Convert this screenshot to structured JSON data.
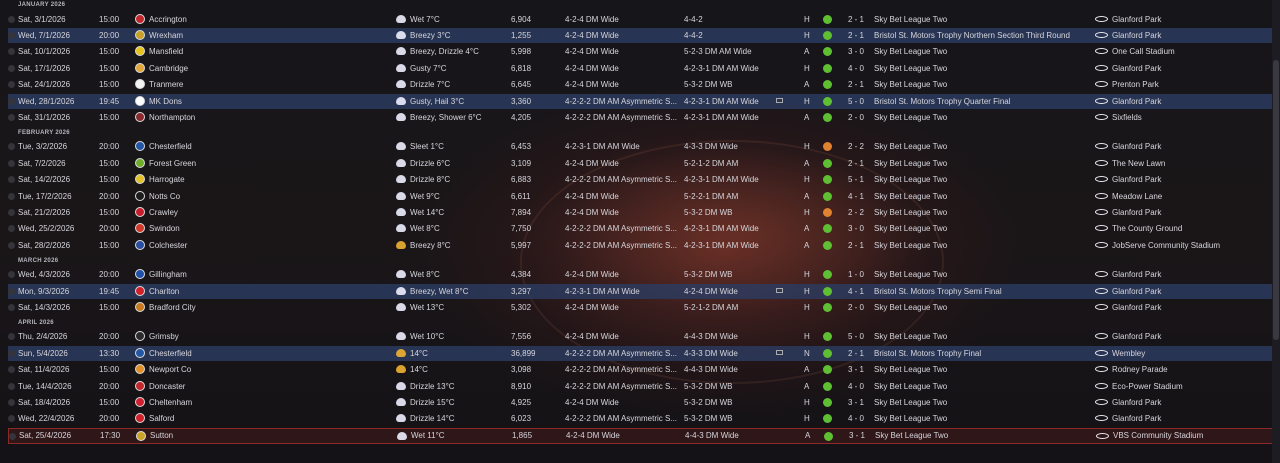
{
  "months": [
    {
      "label": "JANUARY 2026",
      "matches": [
        {
          "date": "Sat, 3/1/2026",
          "time": "15:00",
          "opponent": "Accrington",
          "crest": "#c0282b",
          "weather": "Wet 7°C",
          "wicon": "cloud-rain-icon",
          "attendance": "6,904",
          "formation": "4-2-4 DM Wide",
          "opp_formation": "4-4-2",
          "tv": false,
          "venue": "H",
          "result": "green",
          "score": "2 - 1",
          "competition": "Sky Bet League Two",
          "stadium": "Glanford Park",
          "highlight": false
        },
        {
          "date": "Wed, 7/1/2026",
          "time": "20:00",
          "opponent": "Wrexham",
          "crest": "#c8a02a",
          "weather": "Breezy 3°C",
          "wicon": "wind-cloud-icon",
          "attendance": "1,255",
          "formation": "4-2-4 DM Wide",
          "opp_formation": "4-4-2",
          "tv": false,
          "venue": "H",
          "result": "green",
          "score": "2 - 1",
          "competition": "Bristol St. Motors Trophy Northern Section Third Round",
          "stadium": "Glanford Park",
          "highlight": true
        },
        {
          "date": "Sat, 10/1/2026",
          "time": "15:00",
          "opponent": "Mansfield",
          "crest": "#e6c21d",
          "weather": "Breezy, Drizzle 4°C",
          "wicon": "cloud-drizzle-icon",
          "attendance": "5,998",
          "formation": "4-2-4 DM Wide",
          "opp_formation": "5-2-3 DM AM Wide",
          "tv": false,
          "venue": "A",
          "result": "green",
          "score": "3 - 0",
          "competition": "Sky Bet League Two",
          "stadium": "One Call Stadium",
          "highlight": false
        },
        {
          "date": "Sat, 17/1/2026",
          "time": "15:00",
          "opponent": "Cambridge",
          "crest": "#e0a83a",
          "weather": "Gusty 7°C",
          "wicon": "wind-cloud-icon",
          "attendance": "6,818",
          "formation": "4-2-4 DM Wide",
          "opp_formation": "4-2-3-1 DM AM Wide",
          "tv": false,
          "venue": "H",
          "result": "green",
          "score": "4 - 0",
          "competition": "Sky Bet League Two",
          "stadium": "Glanford Park",
          "highlight": false
        },
        {
          "date": "Sat, 24/1/2026",
          "time": "15:00",
          "opponent": "Tranmere",
          "crest": "#f2f2f2",
          "weather": "Drizzle 7°C",
          "wicon": "cloud-drizzle-icon",
          "attendance": "6,645",
          "formation": "4-2-4 DM Wide",
          "opp_formation": "5-3-2 DM WB",
          "tv": false,
          "venue": "A",
          "result": "green",
          "score": "2 - 1",
          "competition": "Sky Bet League Two",
          "stadium": "Prenton Park",
          "highlight": false
        },
        {
          "date": "Wed, 28/1/2026",
          "time": "19:45",
          "opponent": "MK Dons",
          "crest": "#ffffff",
          "weather": "Gusty, Hail 3°C",
          "wicon": "cloud-hail-icon",
          "attendance": "3,360",
          "formation": "4-2-2-2 DM AM Asymmetric S...",
          "opp_formation": "4-2-3-1 DM AM Wide",
          "tv": true,
          "venue": "H",
          "result": "green",
          "score": "5 - 0",
          "competition": "Bristol St. Motors Trophy Quarter Final",
          "stadium": "Glanford Park",
          "highlight": true
        },
        {
          "date": "Sat, 31/1/2026",
          "time": "15:00",
          "opponent": "Northampton",
          "crest": "#8a2a2e",
          "weather": "Breezy, Shower 6°C",
          "wicon": "cloud-rain-icon",
          "attendance": "4,205",
          "formation": "4-2-2-2 DM AM Asymmetric S...",
          "opp_formation": "4-2-3-1 DM AM Wide",
          "tv": false,
          "venue": "A",
          "result": "green",
          "score": "2 - 0",
          "competition": "Sky Bet League Two",
          "stadium": "Sixfields",
          "highlight": false
        }
      ]
    },
    {
      "label": "FEBRUARY 2026",
      "matches": [
        {
          "date": "Tue, 3/2/2026",
          "time": "20:00",
          "opponent": "Chesterfield",
          "crest": "#2456a6",
          "weather": "Sleet 1°C",
          "wicon": "cloud-sleet-icon",
          "attendance": "6,453",
          "formation": "4-2-3-1 DM AM Wide",
          "opp_formation": "4-3-3 DM Wide",
          "tv": false,
          "venue": "H",
          "result": "orange",
          "score": "2 - 2",
          "competition": "Sky Bet League Two",
          "stadium": "Glanford Park",
          "highlight": false
        },
        {
          "date": "Sat, 7/2/2026",
          "time": "15:00",
          "opponent": "Forest Green",
          "crest": "#6fae2b",
          "weather": "Drizzle 6°C",
          "wicon": "cloud-drizzle-icon",
          "attendance": "3,109",
          "formation": "4-2-4 DM Wide",
          "opp_formation": "5-2-1-2 DM AM",
          "tv": false,
          "venue": "A",
          "result": "green",
          "score": "2 - 1",
          "competition": "Sky Bet League Two",
          "stadium": "The New Lawn",
          "highlight": false
        },
        {
          "date": "Sat, 14/2/2026",
          "time": "15:00",
          "opponent": "Harrogate",
          "crest": "#e3c12b",
          "weather": "Drizzle 8°C",
          "wicon": "cloud-drizzle-icon",
          "attendance": "6,883",
          "formation": "4-2-2-2 DM AM Asymmetric S...",
          "opp_formation": "4-2-3-1 DM AM Wide",
          "tv": false,
          "venue": "H",
          "result": "green",
          "score": "5 - 1",
          "competition": "Sky Bet League Two",
          "stadium": "Glanford Park",
          "highlight": false
        },
        {
          "date": "Tue, 17/2/2026",
          "time": "20:00",
          "opponent": "Notts Co",
          "crest": "#1c1c1c",
          "weather": "Wet 9°C",
          "wicon": "cloud-rain-icon",
          "attendance": "6,611",
          "formation": "4-2-4 DM Wide",
          "opp_formation": "5-2-2-1 DM AM",
          "tv": false,
          "venue": "A",
          "result": "green",
          "score": "4 - 1",
          "competition": "Sky Bet League Two",
          "stadium": "Meadow Lane",
          "highlight": false
        },
        {
          "date": "Sat, 21/2/2026",
          "time": "15:00",
          "opponent": "Crawley",
          "crest": "#c41e2a",
          "weather": "Wet 14°C",
          "wicon": "cloud-rain-icon",
          "attendance": "7,894",
          "formation": "4-2-4 DM Wide",
          "opp_formation": "5-3-2 DM WB",
          "tv": false,
          "venue": "H",
          "result": "orange",
          "score": "2 - 2",
          "competition": "Sky Bet League Two",
          "stadium": "Glanford Park",
          "highlight": false
        },
        {
          "date": "Wed, 25/2/2026",
          "time": "20:00",
          "opponent": "Swindon",
          "crest": "#d03a2a",
          "weather": "Wet 8°C",
          "wicon": "cloud-rain-icon",
          "attendance": "7,750",
          "formation": "4-2-2-2 DM AM Asymmetric S...",
          "opp_formation": "4-2-3-1 DM AM Wide",
          "tv": false,
          "venue": "A",
          "result": "green",
          "score": "3 - 0",
          "competition": "Sky Bet League Two",
          "stadium": "The County Ground",
          "highlight": false
        },
        {
          "date": "Sat, 28/2/2026",
          "time": "15:00",
          "opponent": "Colchester",
          "crest": "#2a4fa0",
          "weather": "Breezy 8°C",
          "wicon": "sun-cloud-icon",
          "attendance": "5,997",
          "formation": "4-2-2-2 DM AM Asymmetric S...",
          "opp_formation": "4-2-3-1 DM AM Wide",
          "tv": false,
          "venue": "A",
          "result": "green",
          "score": "2 - 1",
          "competition": "Sky Bet League Two",
          "stadium": "JobServe Community Stadium",
          "highlight": false
        }
      ]
    },
    {
      "label": "MARCH 2026",
      "matches": [
        {
          "date": "Wed, 4/3/2026",
          "time": "20:00",
          "opponent": "Gillingham",
          "crest": "#2050a8",
          "weather": "Wet 8°C",
          "wicon": "cloud-rain-icon",
          "attendance": "4,384",
          "formation": "4-2-4 DM Wide",
          "opp_formation": "5-3-2 DM WB",
          "tv": false,
          "venue": "H",
          "result": "green",
          "score": "1 - 0",
          "competition": "Sky Bet League Two",
          "stadium": "Glanford Park",
          "highlight": false
        },
        {
          "date": "Mon, 9/3/2026",
          "time": "19:45",
          "opponent": "Charlton",
          "crest": "#d0202a",
          "weather": "Breezy, Wet 8°C",
          "wicon": "cloud-rain-icon",
          "attendance": "3,297",
          "formation": "4-2-3-1 DM AM Wide",
          "opp_formation": "4-2-4 DM Wide",
          "tv": true,
          "venue": "H",
          "result": "green",
          "score": "4 - 1",
          "competition": "Bristol St. Motors Trophy Semi Final",
          "stadium": "Glanford Park",
          "highlight": true
        },
        {
          "date": "Sat, 14/3/2026",
          "time": "15:00",
          "opponent": "Bradford City",
          "crest": "#c77a1e",
          "weather": "Wet 13°C",
          "wicon": "cloud-rain-icon",
          "attendance": "5,302",
          "formation": "4-2-4 DM Wide",
          "opp_formation": "5-2-1-2 DM AM",
          "tv": false,
          "venue": "H",
          "result": "green",
          "score": "2 - 0",
          "competition": "Sky Bet League Two",
          "stadium": "Glanford Park",
          "highlight": false
        }
      ]
    },
    {
      "label": "APRIL 2026",
      "matches": [
        {
          "date": "Thu, 2/4/2026",
          "time": "20:00",
          "opponent": "Grimsby",
          "crest": "#2b2b2b",
          "weather": "Wet 10°C",
          "wicon": "cloud-rain-icon",
          "attendance": "7,556",
          "formation": "4-2-4 DM Wide",
          "opp_formation": "4-4-3 DM Wide",
          "tv": false,
          "venue": "H",
          "result": "green",
          "score": "5 - 0",
          "competition": "Sky Bet League Two",
          "stadium": "Glanford Park",
          "highlight": false
        },
        {
          "date": "Sun, 5/4/2026",
          "time": "13:30",
          "opponent": "Chesterfield",
          "crest": "#2456a6",
          "weather": "14°C",
          "wicon": "sun-cloud-icon",
          "attendance": "36,899",
          "formation": "4-2-2-2 DM AM Asymmetric S...",
          "opp_formation": "4-3-3 DM Wide",
          "tv": true,
          "venue": "N",
          "result": "green",
          "score": "2 - 1",
          "competition": "Bristol St. Motors Trophy Final",
          "stadium": "Wembley",
          "highlight": true
        },
        {
          "date": "Sat, 11/4/2026",
          "time": "15:00",
          "opponent": "Newport Co",
          "crest": "#e0902a",
          "weather": "14°C",
          "wicon": "sun-cloud-icon",
          "attendance": "3,098",
          "formation": "4-2-2-2 DM AM Asymmetric S...",
          "opp_formation": "4-4-3 DM Wide",
          "tv": false,
          "venue": "A",
          "result": "green",
          "score": "3 - 1",
          "competition": "Sky Bet League Two",
          "stadium": "Rodney Parade",
          "highlight": false
        },
        {
          "date": "Tue, 14/4/2026",
          "time": "20:00",
          "opponent": "Doncaster",
          "crest": "#c0282b",
          "weather": "Drizzle 13°C",
          "wicon": "cloud-drizzle-icon",
          "attendance": "8,910",
          "formation": "4-2-2-2 DM AM Asymmetric S...",
          "opp_formation": "5-3-2 DM WB",
          "tv": false,
          "venue": "A",
          "result": "green",
          "score": "4 - 0",
          "competition": "Sky Bet League Two",
          "stadium": "Eco-Power Stadium",
          "highlight": false
        },
        {
          "date": "Sat, 18/4/2026",
          "time": "15:00",
          "opponent": "Cheltenham",
          "crest": "#d02030",
          "weather": "Drizzle 15°C",
          "wicon": "cloud-drizzle-icon",
          "attendance": "4,925",
          "formation": "4-2-4 DM Wide",
          "opp_formation": "5-3-2 DM WB",
          "tv": false,
          "venue": "H",
          "result": "green",
          "score": "3 - 1",
          "competition": "Sky Bet League Two",
          "stadium": "Glanford Park",
          "highlight": false
        },
        {
          "date": "Wed, 22/4/2026",
          "time": "20:00",
          "opponent": "Salford",
          "crest": "#d0202a",
          "weather": "Drizzle 14°C",
          "wicon": "cloud-drizzle-icon",
          "attendance": "6,023",
          "formation": "4-2-2-2 DM AM Asymmetric S...",
          "opp_formation": "5-3-2 DM WB",
          "tv": false,
          "venue": "H",
          "result": "green",
          "score": "4 - 0",
          "competition": "Sky Bet League Two",
          "stadium": "Glanford Park",
          "highlight": false
        },
        {
          "date": "Sat, 25/4/2026",
          "time": "17:30",
          "opponent": "Sutton",
          "crest": "#c9a22a",
          "weather": "Wet 11°C",
          "wicon": "cloud-rain-icon",
          "attendance": "1,865",
          "formation": "4-2-4 DM Wide",
          "opp_formation": "4-4-3 DM Wide",
          "tv": false,
          "venue": "A",
          "result": "green",
          "score": "3 - 1",
          "competition": "Sky Bet League Two",
          "stadium": "VBS Community Stadium",
          "highlight": false,
          "selected": true
        }
      ]
    }
  ]
}
